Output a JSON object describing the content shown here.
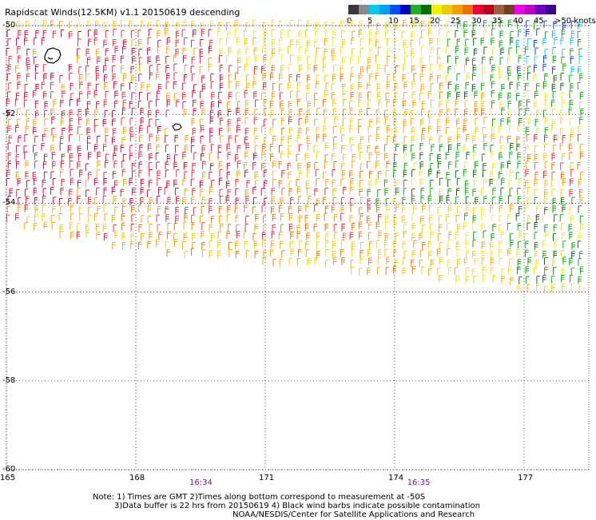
{
  "title": "Rapidscat Winds(12.5KM) v1.1 20150619 descending",
  "colorbar": {
    "swatches": [
      "#3a3a3a",
      "#8a8a8a",
      "#00c8f0",
      "#00a0f0",
      "#0050f0",
      "#0000c0",
      "#20b020",
      "#007000",
      "#f0f000",
      "#f0c800",
      "#f0a000",
      "#f07000",
      "#f00030",
      "#c00020",
      "#a06040",
      "#704020",
      "#f000f0",
      "#c000c0",
      "#7000c0",
      "#400090"
    ],
    "ticks": [
      "0",
      "5",
      "10",
      "15",
      "20",
      "25",
      "30",
      "35",
      "40",
      "45",
      ">50 knots"
    ]
  },
  "axes": {
    "lat_labels": [
      "-50",
      "-52",
      "-54",
      "-56",
      "-58",
      "-60"
    ],
    "lat_values": [
      -50,
      -52,
      -54,
      -56,
      -58,
      -60
    ],
    "lon_labels": [
      "165",
      "168",
      "171",
      "174",
      "177"
    ],
    "lon_values": [
      165,
      168,
      171,
      174,
      177
    ],
    "lon_range": [
      165,
      178.5
    ],
    "lat_range": [
      -50,
      -60
    ],
    "grid": true
  },
  "time_labels": [
    {
      "text": "16:34",
      "lon": 169.5
    },
    {
      "text": "16:35",
      "lon": 174.55
    }
  ],
  "notes": [
    "Note: 1) Times are GMT 2)Times along bottom correspond to measurement at -50S",
    "3)Data buffer is 22 hrs from 20150619 4) Black wind barbs indicate possible contamination",
    "NOAA/NESDIS/Center for Satellite Applications and Research"
  ],
  "swath": {
    "description_colors": {
      "light": "#f0e020",
      "yellow": "#f0c800",
      "orange": "#f0a000",
      "dark_orange": "#e07000",
      "red": "#e02030",
      "crimson": "#c00030",
      "green": "#00a000",
      "dark_green": "#006000",
      "blue": "#0030e0",
      "cyan": "#00c0f0",
      "black": "#000000"
    }
  }
}
